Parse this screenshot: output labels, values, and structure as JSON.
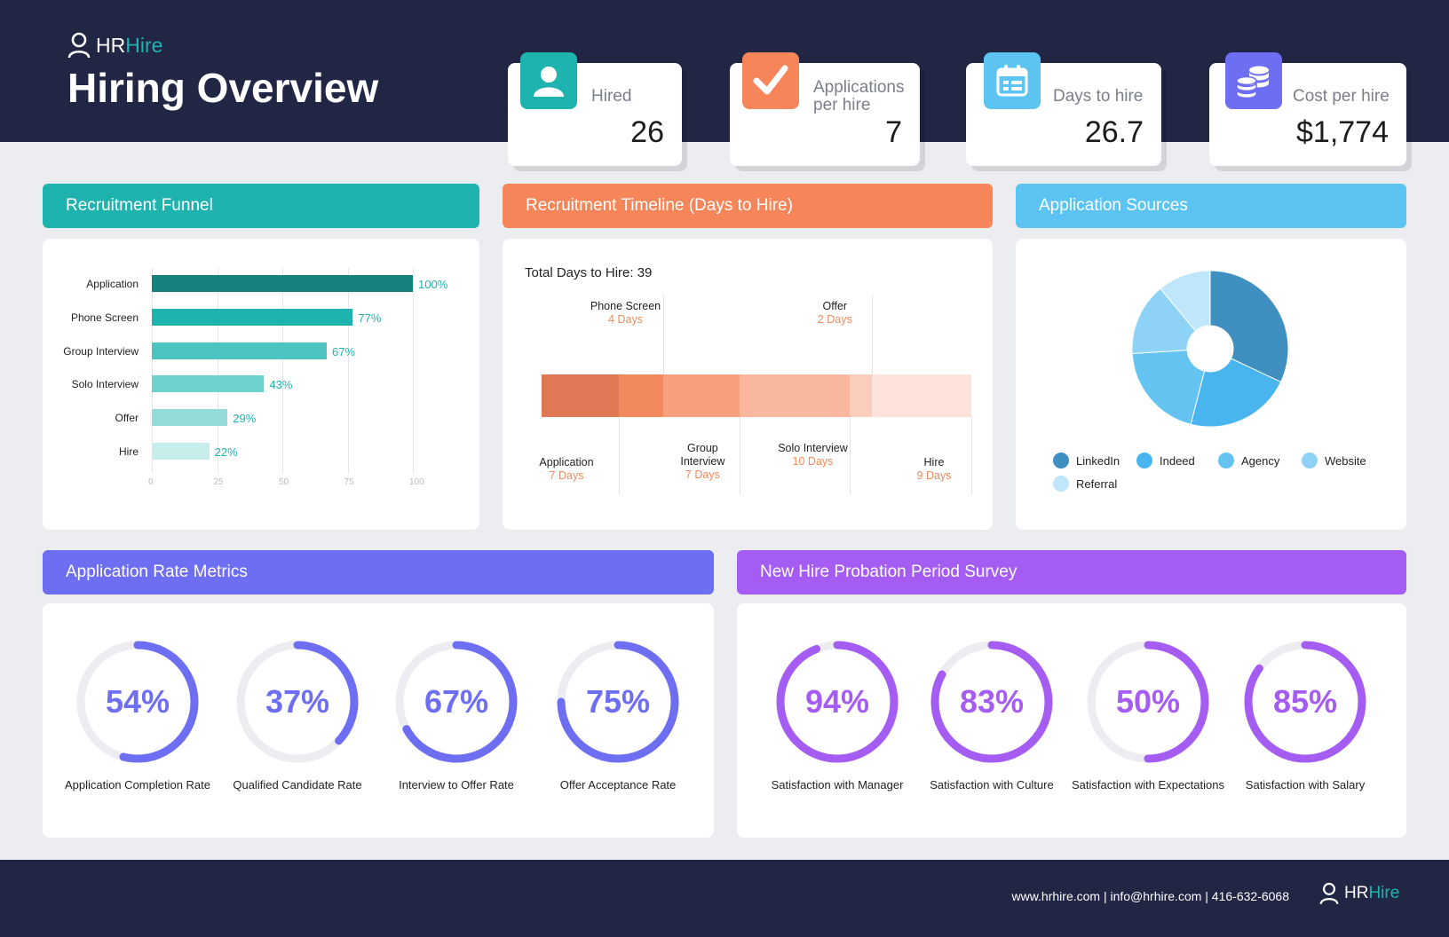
{
  "brand": {
    "hr": "HR",
    "hire": "Hire"
  },
  "page_title": "Hiring Overview",
  "kpis": [
    {
      "label": "Hired",
      "value": "26",
      "icon": "person-icon",
      "color": "#1fb3b0"
    },
    {
      "label": "Applications per hire",
      "value": "7",
      "icon": "checkmark-icon",
      "color": "#f7855a"
    },
    {
      "label": "Days to hire",
      "value": "26.7",
      "icon": "calendar-icon",
      "color": "#5bc4f2"
    },
    {
      "label": "Cost per hire",
      "value": "$1,774",
      "icon": "coins-icon",
      "color": "#6e6ef3"
    }
  ],
  "sections": {
    "funnel": "Recruitment Funnel",
    "timeline": "Recruitment Timeline (Days to Hire)",
    "sources": "Application Sources",
    "rates": "Application Rate Metrics",
    "survey": "New Hire Probation Period Survey"
  },
  "chart_data": [
    {
      "type": "bar",
      "title": "Recruitment Funnel",
      "orientation": "horizontal",
      "categories": [
        "Application",
        "Phone Screen",
        "Group Interview",
        "Solo Interview",
        "Offer",
        "Hire"
      ],
      "values": [
        100,
        77,
        67,
        43,
        29,
        22
      ],
      "value_labels": [
        "100%",
        "77%",
        "67%",
        "43%",
        "29%",
        "22%"
      ],
      "xlim": [
        0,
        100
      ],
      "xticks": [
        "0",
        "25",
        "50",
        "75",
        "100"
      ],
      "colors": [
        "#15817f",
        "#1fb3b0",
        "#4cc4c1",
        "#6fd0cc",
        "#94dcd8",
        "#c8eeec"
      ]
    },
    {
      "type": "bar",
      "title": "Recruitment Timeline (Days to Hire)",
      "subtitle": "Total Days to Hire: 39",
      "orientation": "stacked-horizontal",
      "categories": [
        "Application",
        "Phone Screen",
        "Group Interview",
        "Solo Interview",
        "Offer",
        "Hire"
      ],
      "values": [
        7,
        4,
        7,
        10,
        2,
        9
      ],
      "label_names": [
        "Application",
        "Phone Screen",
        "Group Interview",
        "Solo Interview",
        "Offer",
        "Hire"
      ],
      "day_labels": [
        "7 Days",
        "4 Days",
        "7 Days",
        "10 Days",
        "2 Days",
        "9 Days"
      ],
      "colors": [
        "#e07855",
        "#f38a5e",
        "#f7a07e",
        "#f9b7a0",
        "#fbcdbd",
        "#fde3da"
      ]
    },
    {
      "type": "pie",
      "title": "Application Sources",
      "categories": [
        "LinkedIn",
        "Indeed",
        "Agency",
        "Website",
        "Referral"
      ],
      "values": [
        32,
        22,
        20,
        15,
        11
      ],
      "colors": [
        "#3f8fc1",
        "#49b5ef",
        "#65c3f2",
        "#8ed3f5",
        "#bfe6fa"
      ]
    }
  ],
  "rates": [
    {
      "value": 54,
      "display": "54%",
      "label": "Application Completion Rate"
    },
    {
      "value": 37,
      "display": "37%",
      "label": "Qualified Candidate Rate"
    },
    {
      "value": 67,
      "display": "67%",
      "label": "Interview to Offer Rate"
    },
    {
      "value": 75,
      "display": "75%",
      "label": "Offer Acceptance Rate"
    }
  ],
  "survey": [
    {
      "value": 94,
      "display": "94%",
      "label": "Satisfaction with Manager"
    },
    {
      "value": 83,
      "display": "83%",
      "label": "Satisfaction with Culture"
    },
    {
      "value": 50,
      "display": "50%",
      "label": "Satisfaction with Expectations"
    },
    {
      "value": 85,
      "display": "85%",
      "label": "Satisfaction with Salary"
    }
  ],
  "colors": {
    "rates": "#6e6ef3",
    "survey": "#a55cf2",
    "ring_track": "#ececf1"
  },
  "footer": {
    "contact": "www.hrhire.com | info@hrhire.com |  416-632-6068"
  }
}
